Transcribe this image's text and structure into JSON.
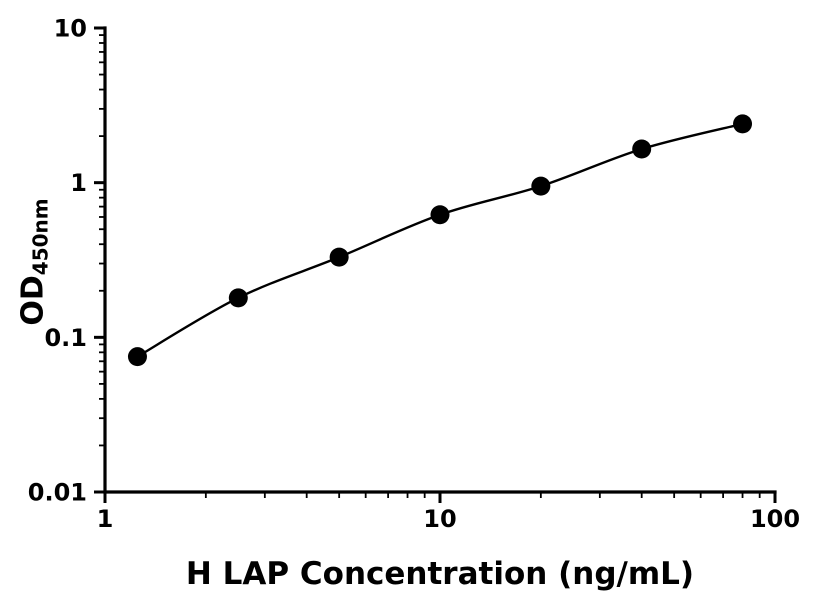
{
  "chart_data": {
    "type": "scatter",
    "curve": "smooth",
    "x": [
      1.25,
      2.5,
      5,
      10,
      20,
      40,
      80
    ],
    "y": [
      0.075,
      0.18,
      0.33,
      0.62,
      0.95,
      1.65,
      2.4
    ],
    "xlabel": "H LAP Concentration (ng/mL)",
    "ylabel": "OD",
    "ylabel_subscript": "450nm",
    "xscale": "log",
    "yscale": "log",
    "xlim": [
      1,
      100
    ],
    "ylim": [
      0.01,
      10
    ],
    "x_major_ticks": [
      1,
      10,
      100
    ],
    "x_tick_labels": [
      "1",
      "10",
      "100"
    ],
    "y_major_ticks": [
      0.01,
      0.1,
      1,
      10
    ],
    "y_tick_labels": [
      "0.01",
      "0.1",
      "1",
      "10"
    ],
    "marker_color": "#000000",
    "line_color": "#000000",
    "axis_color": "#000000",
    "grid": false,
    "legend": null
  }
}
